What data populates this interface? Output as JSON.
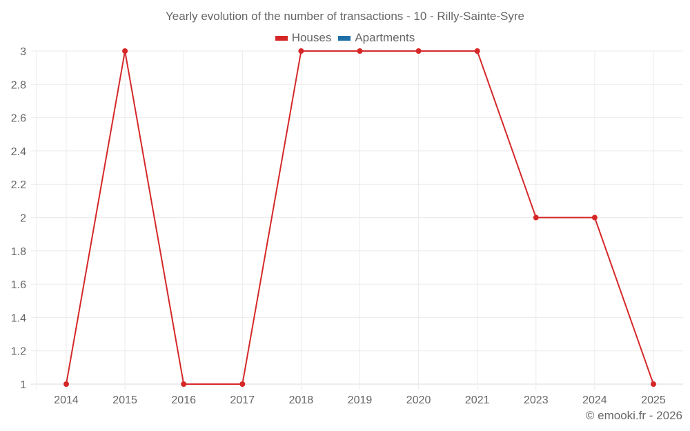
{
  "header": {
    "title": "Yearly evolution of the number of transactions - 10 - Rilly-Sainte-Syre"
  },
  "legend": [
    {
      "label": "Houses",
      "color": "#d62728"
    },
    {
      "label": "Apartments",
      "color": "#1f6fa8"
    }
  ],
  "footer": {
    "credit": "© emooki.fr - 2026"
  },
  "colors": {
    "houses": "#d62728",
    "apartments": "#1f6fa8",
    "grid": "#ebebeb",
    "text": "#666666"
  },
  "chart_data": {
    "type": "line",
    "title": "Yearly evolution of the number of transactions - 10 - Rilly-Sainte-Syre",
    "xlabel": "",
    "ylabel": "",
    "categories": [
      "2014",
      "2015",
      "2016",
      "2017",
      "2018",
      "2019",
      "2020",
      "2021",
      "2023",
      "2024",
      "2025"
    ],
    "series": [
      {
        "name": "Houses",
        "color": "#d62728",
        "values": [
          1,
          3,
          1,
          1,
          3,
          3,
          3,
          3,
          2,
          2,
          1
        ]
      },
      {
        "name": "Apartments",
        "color": "#1f6fa8",
        "values": []
      }
    ],
    "yticks": [
      "1",
      "1.2",
      "1.4",
      "1.6",
      "1.8",
      "2",
      "2.2",
      "2.4",
      "2.6",
      "2.8",
      "3"
    ],
    "ylim": [
      1,
      3
    ],
    "grid": true,
    "legend_position": "top"
  }
}
